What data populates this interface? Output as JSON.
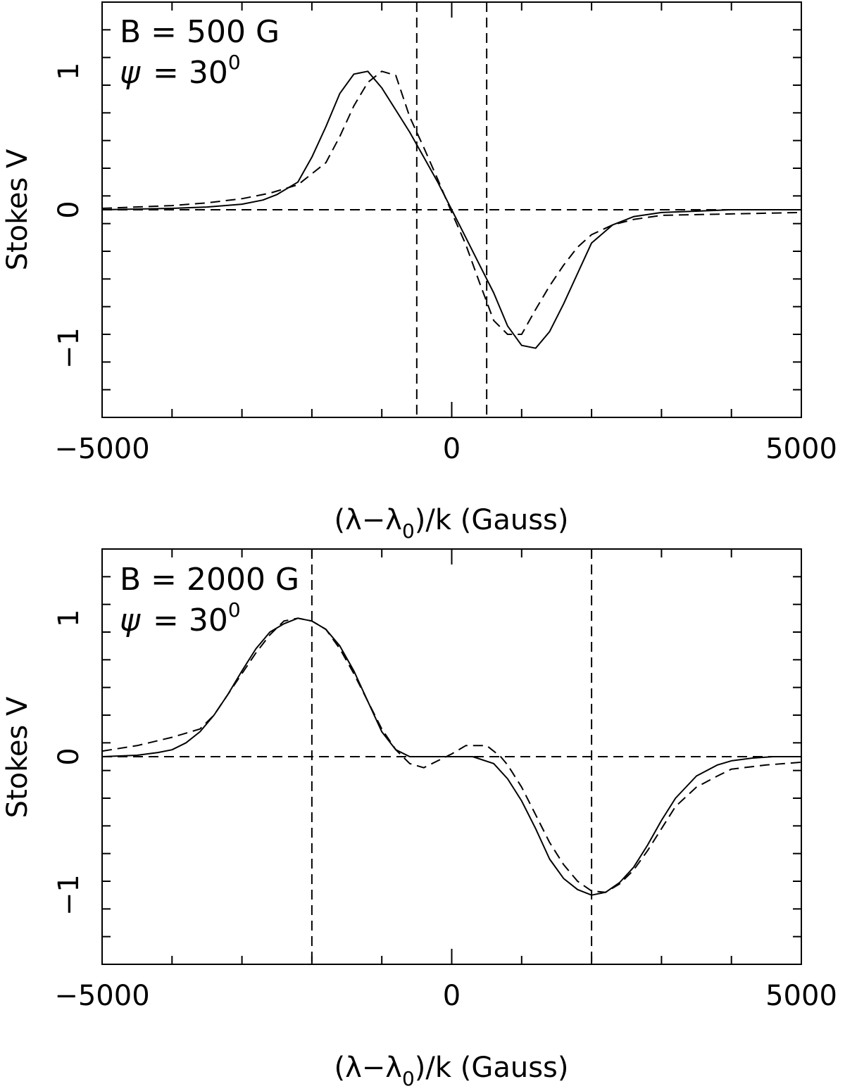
{
  "chart_data": [
    {
      "type": "line",
      "annotation": {
        "field": "B = 500 G",
        "angle_symbol": "ψ",
        "angle_value": "= 30",
        "angle_sup": "0"
      },
      "xlabel": "(λ−λ",
      "xlabel_sub": "0",
      "xlabel_rest": ")/k  (Gauss)",
      "ylabel": "Stokes V",
      "xlim": [
        -5000,
        5000
      ],
      "ylim": [
        -1.5,
        1.5
      ],
      "x_tick_labels": [
        {
          "value": -5000,
          "label": "−5000"
        },
        {
          "value": 0,
          "label": "0"
        },
        {
          "value": 5000,
          "label": "5000"
        }
      ],
      "y_tick_labels": [
        {
          "value": 1,
          "label": "1"
        },
        {
          "value": 0,
          "label": "0"
        },
        {
          "value": -1,
          "label": "−1"
        }
      ],
      "reference_lines": {
        "horizontal": [
          0
        ],
        "vertical": [
          -500,
          500
        ]
      },
      "series": [
        {
          "style": "solid",
          "x": [
            -5000,
            -4000,
            -3500,
            -3000,
            -2700,
            -2500,
            -2200,
            -2000,
            -1800,
            -1600,
            -1400,
            -1200,
            -1000,
            -800,
            -600,
            -400,
            -200,
            0,
            200,
            400,
            600,
            800,
            1000,
            1200,
            1400,
            1600,
            1800,
            2000,
            2300,
            2600,
            3000,
            3500,
            4000,
            5000
          ],
          "y": [
            0.0,
            0.01,
            0.02,
            0.04,
            0.07,
            0.11,
            0.2,
            0.38,
            0.6,
            0.84,
            0.98,
            1.0,
            0.88,
            0.72,
            0.56,
            0.38,
            0.2,
            0.0,
            -0.2,
            -0.4,
            -0.6,
            -0.84,
            -0.98,
            -1.0,
            -0.88,
            -0.68,
            -0.46,
            -0.24,
            -0.11,
            -0.05,
            -0.02,
            -0.01,
            0.0,
            0.0
          ]
        },
        {
          "style": "dashed",
          "x": [
            -5000,
            -4000,
            -3500,
            -3000,
            -2600,
            -2200,
            -1800,
            -1600,
            -1400,
            -1200,
            -1000,
            -800,
            -600,
            -400,
            -200,
            0,
            200,
            400,
            600,
            800,
            1000,
            1200,
            1400,
            1600,
            1800,
            2000,
            2300,
            2600,
            3000,
            4000,
            5000
          ],
          "y": [
            0.01,
            0.03,
            0.05,
            0.08,
            0.12,
            0.18,
            0.34,
            0.53,
            0.75,
            0.92,
            1.0,
            0.97,
            0.67,
            0.45,
            0.22,
            -0.02,
            -0.25,
            -0.53,
            -0.8,
            -0.9,
            -0.9,
            -0.72,
            -0.55,
            -0.4,
            -0.27,
            -0.18,
            -0.11,
            -0.07,
            -0.04,
            -0.03,
            -0.02
          ]
        }
      ]
    },
    {
      "type": "line",
      "annotation": {
        "field": "B = 2000 G",
        "angle_symbol": "ψ",
        "angle_value": "= 30",
        "angle_sup": "0"
      },
      "xlabel": "(λ−λ",
      "xlabel_sub": "0",
      "xlabel_rest": ")/k  (Gauss)",
      "ylabel": "Stokes V",
      "xlim": [
        -5000,
        5000
      ],
      "ylim": [
        -1.5,
        1.5
      ],
      "x_tick_labels": [
        {
          "value": -5000,
          "label": "−5000"
        },
        {
          "value": 0,
          "label": "0"
        },
        {
          "value": 5000,
          "label": "5000"
        }
      ],
      "y_tick_labels": [
        {
          "value": 1,
          "label": "1"
        },
        {
          "value": 0,
          "label": "0"
        },
        {
          "value": -1,
          "label": "−1"
        }
      ],
      "reference_lines": {
        "horizontal": [
          0
        ],
        "vertical": [
          -2000,
          2000
        ]
      },
      "series": [
        {
          "style": "solid",
          "x": [
            -5000,
            -4500,
            -4200,
            -4000,
            -3800,
            -3600,
            -3400,
            -3200,
            -3000,
            -2800,
            -2600,
            -2400,
            -2200,
            -2000,
            -1800,
            -1600,
            -1400,
            -1200,
            -1000,
            -800,
            -600,
            -400,
            -200,
            0,
            300,
            600,
            800,
            1000,
            1200,
            1400,
            1600,
            1800,
            2000,
            2200,
            2400,
            2600,
            2800,
            3000,
            3200,
            3500,
            3800,
            4000,
            4300,
            4600,
            5000
          ],
          "y": [
            0.0,
            0.01,
            0.03,
            0.05,
            0.1,
            0.18,
            0.3,
            0.45,
            0.62,
            0.78,
            0.9,
            0.96,
            1.0,
            0.98,
            0.92,
            0.8,
            0.62,
            0.4,
            0.18,
            0.05,
            0.0,
            0.0,
            0.0,
            0.0,
            0.0,
            -0.05,
            -0.16,
            -0.32,
            -0.52,
            -0.74,
            -0.88,
            -0.96,
            -1.0,
            -0.98,
            -0.91,
            -0.8,
            -0.64,
            -0.46,
            -0.3,
            -0.14,
            -0.06,
            -0.03,
            -0.01,
            0.0,
            0.0
          ]
        },
        {
          "style": "dashed",
          "x": [
            -5000,
            -4500,
            -4000,
            -3600,
            -3400,
            -3200,
            -3000,
            -2800,
            -2600,
            -2400,
            -2200,
            -2000,
            -1800,
            -1600,
            -1400,
            -1200,
            -1000,
            -800,
            -600,
            -400,
            -200,
            0,
            200,
            500,
            700,
            800,
            1000,
            1200,
            1400,
            1600,
            1800,
            2000,
            2200,
            2400,
            2600,
            2800,
            3000,
            3200,
            3500,
            3800,
            4000,
            4500,
            5000
          ],
          "y": [
            0.04,
            0.08,
            0.14,
            0.2,
            0.3,
            0.45,
            0.6,
            0.75,
            0.88,
            0.98,
            1.0,
            0.98,
            0.92,
            0.78,
            0.6,
            0.4,
            0.2,
            0.05,
            -0.05,
            -0.08,
            -0.03,
            0.02,
            0.08,
            0.08,
            0.0,
            -0.06,
            -0.22,
            -0.42,
            -0.62,
            -0.78,
            -0.9,
            -0.97,
            -0.98,
            -0.92,
            -0.82,
            -0.68,
            -0.52,
            -0.36,
            -0.22,
            -0.14,
            -0.09,
            -0.06,
            -0.04
          ]
        }
      ]
    }
  ]
}
